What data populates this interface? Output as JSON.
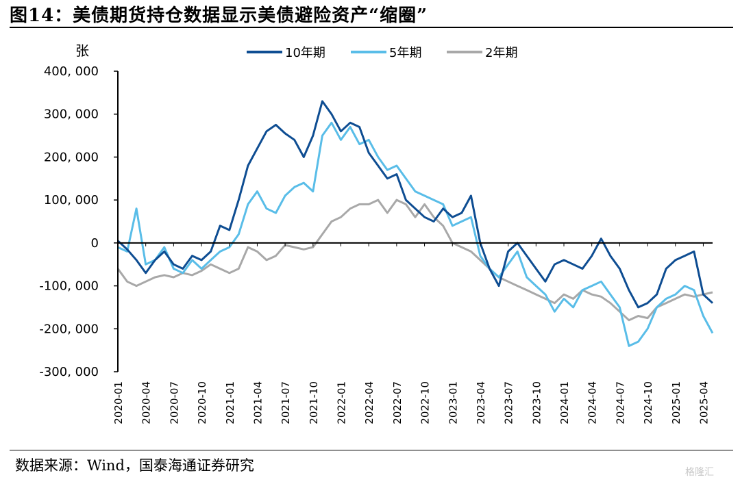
{
  "title": "图14：美债期货持仓数据显示美债避险资产“缩圈”",
  "source": "数据来源：Wind，国泰海通证券研究",
  "watermark": "格隆汇",
  "colors": {
    "s10": "#0e4d92",
    "s5": "#59bde8",
    "s2": "#a8a8a8"
  },
  "chart_data": {
    "type": "line",
    "ylabel": "张",
    "ylim": [
      -300000,
      400000
    ],
    "yticks": [
      400000,
      300000,
      200000,
      100000,
      0,
      -100000,
      -200000,
      -300000
    ],
    "ytick_labels": [
      "400, 000",
      "300, 000",
      "200, 000",
      "100, 000",
      "0",
      "-100, 000",
      "-200, 000",
      "-300, 000"
    ],
    "xlim": [
      "2020-01",
      "2025-05"
    ],
    "xticks": [
      "2020-01",
      "2020-04",
      "2020-07",
      "2020-10",
      "2021-01",
      "2021-04",
      "2021-07",
      "2021-10",
      "2022-01",
      "2022-04",
      "2022-07",
      "2022-10",
      "2023-01",
      "2023-04",
      "2023-07",
      "2023-10",
      "2024-01",
      "2024-04",
      "2024-07",
      "2024-10",
      "2025-01",
      "2025-04"
    ],
    "legend_position": "top",
    "series": [
      {
        "name": "10年期",
        "key": "s10",
        "points": [
          [
            "2020-01",
            5000
          ],
          [
            "2020-02",
            -15000
          ],
          [
            "2020-03",
            -40000
          ],
          [
            "2020-04",
            -70000
          ],
          [
            "2020-05",
            -40000
          ],
          [
            "2020-06",
            -20000
          ],
          [
            "2020-07",
            -50000
          ],
          [
            "2020-08",
            -60000
          ],
          [
            "2020-09",
            -30000
          ],
          [
            "2020-10",
            -40000
          ],
          [
            "2020-11",
            -20000
          ],
          [
            "2020-12",
            40000
          ],
          [
            "2021-01",
            30000
          ],
          [
            "2021-02",
            100000
          ],
          [
            "2021-03",
            180000
          ],
          [
            "2021-04",
            220000
          ],
          [
            "2021-05",
            260000
          ],
          [
            "2021-06",
            275000
          ],
          [
            "2021-07",
            255000
          ],
          [
            "2021-08",
            240000
          ],
          [
            "2021-09",
            200000
          ],
          [
            "2021-10",
            250000
          ],
          [
            "2021-11",
            330000
          ],
          [
            "2021-12",
            300000
          ],
          [
            "2022-01",
            260000
          ],
          [
            "2022-02",
            280000
          ],
          [
            "2022-03",
            270000
          ],
          [
            "2022-04",
            210000
          ],
          [
            "2022-05",
            180000
          ],
          [
            "2022-06",
            150000
          ],
          [
            "2022-07",
            160000
          ],
          [
            "2022-08",
            100000
          ],
          [
            "2022-09",
            80000
          ],
          [
            "2022-10",
            60000
          ],
          [
            "2022-11",
            50000
          ],
          [
            "2022-12",
            80000
          ],
          [
            "2023-01",
            60000
          ],
          [
            "2023-02",
            70000
          ],
          [
            "2023-03",
            110000
          ],
          [
            "2023-04",
            0
          ],
          [
            "2023-05",
            -60000
          ],
          [
            "2023-06",
            -100000
          ],
          [
            "2023-07",
            -20000
          ],
          [
            "2023-08",
            0
          ],
          [
            "2023-09",
            -30000
          ],
          [
            "2023-10",
            -60000
          ],
          [
            "2023-11",
            -90000
          ],
          [
            "2023-12",
            -50000
          ],
          [
            "2024-01",
            -40000
          ],
          [
            "2024-02",
            -50000
          ],
          [
            "2024-03",
            -60000
          ],
          [
            "2024-04",
            -30000
          ],
          [
            "2024-05",
            10000
          ],
          [
            "2024-06",
            -30000
          ],
          [
            "2024-07",
            -60000
          ],
          [
            "2024-08",
            -110000
          ],
          [
            "2024-09",
            -150000
          ],
          [
            "2024-10",
            -140000
          ],
          [
            "2024-11",
            -120000
          ],
          [
            "2024-12",
            -60000
          ],
          [
            "2025-01",
            -40000
          ],
          [
            "2025-02",
            -30000
          ],
          [
            "2025-03",
            -20000
          ],
          [
            "2025-04",
            -120000
          ],
          [
            "2025-05",
            -140000
          ]
        ]
      },
      {
        "name": "5年期",
        "key": "s5",
        "points": [
          [
            "2020-01",
            -10000
          ],
          [
            "2020-02",
            -20000
          ],
          [
            "2020-03",
            80000
          ],
          [
            "2020-04",
            -50000
          ],
          [
            "2020-05",
            -40000
          ],
          [
            "2020-06",
            -10000
          ],
          [
            "2020-07",
            -60000
          ],
          [
            "2020-08",
            -70000
          ],
          [
            "2020-09",
            -40000
          ],
          [
            "2020-10",
            -60000
          ],
          [
            "2020-11",
            -40000
          ],
          [
            "2020-12",
            -20000
          ],
          [
            "2021-01",
            -10000
          ],
          [
            "2021-02",
            20000
          ],
          [
            "2021-03",
            90000
          ],
          [
            "2021-04",
            120000
          ],
          [
            "2021-05",
            80000
          ],
          [
            "2021-06",
            70000
          ],
          [
            "2021-07",
            110000
          ],
          [
            "2021-08",
            130000
          ],
          [
            "2021-09",
            140000
          ],
          [
            "2021-10",
            120000
          ],
          [
            "2021-11",
            250000
          ],
          [
            "2021-12",
            280000
          ],
          [
            "2022-01",
            240000
          ],
          [
            "2022-02",
            270000
          ],
          [
            "2022-03",
            230000
          ],
          [
            "2022-04",
            240000
          ],
          [
            "2022-05",
            200000
          ],
          [
            "2022-06",
            170000
          ],
          [
            "2022-07",
            180000
          ],
          [
            "2022-08",
            150000
          ],
          [
            "2022-09",
            120000
          ],
          [
            "2022-10",
            110000
          ],
          [
            "2022-11",
            100000
          ],
          [
            "2022-12",
            90000
          ],
          [
            "2023-01",
            40000
          ],
          [
            "2023-02",
            50000
          ],
          [
            "2023-03",
            60000
          ],
          [
            "2023-04",
            -30000
          ],
          [
            "2023-05",
            -60000
          ],
          [
            "2023-06",
            -80000
          ],
          [
            "2023-07",
            -50000
          ],
          [
            "2023-08",
            -20000
          ],
          [
            "2023-09",
            -80000
          ],
          [
            "2023-10",
            -100000
          ],
          [
            "2023-11",
            -120000
          ],
          [
            "2023-12",
            -160000
          ],
          [
            "2024-01",
            -130000
          ],
          [
            "2024-02",
            -150000
          ],
          [
            "2024-03",
            -110000
          ],
          [
            "2024-04",
            -100000
          ],
          [
            "2024-05",
            -90000
          ],
          [
            "2024-06",
            -120000
          ],
          [
            "2024-07",
            -150000
          ],
          [
            "2024-08",
            -240000
          ],
          [
            "2024-09",
            -230000
          ],
          [
            "2024-10",
            -200000
          ],
          [
            "2024-11",
            -150000
          ],
          [
            "2024-12",
            -130000
          ],
          [
            "2025-01",
            -120000
          ],
          [
            "2025-02",
            -100000
          ],
          [
            "2025-03",
            -110000
          ],
          [
            "2025-04",
            -170000
          ],
          [
            "2025-05",
            -210000
          ]
        ]
      },
      {
        "name": "2年期",
        "key": "s2",
        "points": [
          [
            "2020-01",
            -60000
          ],
          [
            "2020-02",
            -90000
          ],
          [
            "2020-03",
            -100000
          ],
          [
            "2020-04",
            -90000
          ],
          [
            "2020-05",
            -80000
          ],
          [
            "2020-06",
            -75000
          ],
          [
            "2020-07",
            -80000
          ],
          [
            "2020-08",
            -70000
          ],
          [
            "2020-09",
            -75000
          ],
          [
            "2020-10",
            -65000
          ],
          [
            "2020-11",
            -50000
          ],
          [
            "2020-12",
            -60000
          ],
          [
            "2021-01",
            -70000
          ],
          [
            "2021-02",
            -60000
          ],
          [
            "2021-03",
            -10000
          ],
          [
            "2021-04",
            -20000
          ],
          [
            "2021-05",
            -40000
          ],
          [
            "2021-06",
            -30000
          ],
          [
            "2021-07",
            -5000
          ],
          [
            "2021-08",
            -10000
          ],
          [
            "2021-09",
            -15000
          ],
          [
            "2021-10",
            -10000
          ],
          [
            "2021-11",
            20000
          ],
          [
            "2021-12",
            50000
          ],
          [
            "2022-01",
            60000
          ],
          [
            "2022-02",
            80000
          ],
          [
            "2022-03",
            90000
          ],
          [
            "2022-04",
            90000
          ],
          [
            "2022-05",
            100000
          ],
          [
            "2022-06",
            70000
          ],
          [
            "2022-07",
            100000
          ],
          [
            "2022-08",
            90000
          ],
          [
            "2022-09",
            60000
          ],
          [
            "2022-10",
            90000
          ],
          [
            "2022-11",
            60000
          ],
          [
            "2022-12",
            40000
          ],
          [
            "2023-01",
            0
          ],
          [
            "2023-02",
            -10000
          ],
          [
            "2023-03",
            -20000
          ],
          [
            "2023-04",
            -40000
          ],
          [
            "2023-05",
            -60000
          ],
          [
            "2023-06",
            -80000
          ],
          [
            "2023-07",
            -90000
          ],
          [
            "2023-08",
            -100000
          ],
          [
            "2023-09",
            -110000
          ],
          [
            "2023-10",
            -120000
          ],
          [
            "2023-11",
            -130000
          ],
          [
            "2023-12",
            -140000
          ],
          [
            "2024-01",
            -120000
          ],
          [
            "2024-02",
            -130000
          ],
          [
            "2024-03",
            -110000
          ],
          [
            "2024-04",
            -120000
          ],
          [
            "2024-05",
            -125000
          ],
          [
            "2024-06",
            -140000
          ],
          [
            "2024-07",
            -160000
          ],
          [
            "2024-08",
            -180000
          ],
          [
            "2024-09",
            -170000
          ],
          [
            "2024-10",
            -175000
          ],
          [
            "2024-11",
            -150000
          ],
          [
            "2024-12",
            -140000
          ],
          [
            "2025-01",
            -130000
          ],
          [
            "2025-02",
            -120000
          ],
          [
            "2025-03",
            -125000
          ],
          [
            "2025-04",
            -120000
          ],
          [
            "2025-05",
            -115000
          ]
        ]
      }
    ]
  }
}
